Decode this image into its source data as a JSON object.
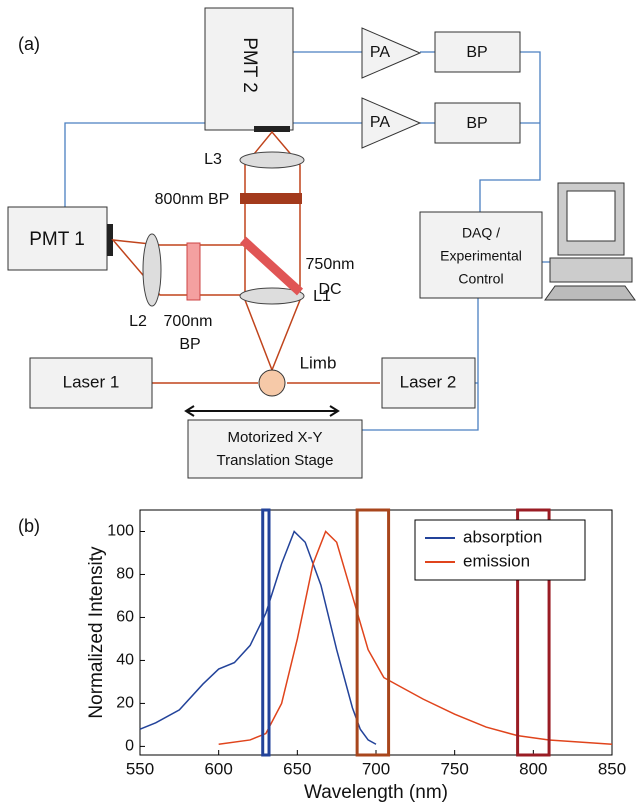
{
  "figure": {
    "panel_a": "(a)",
    "panel_b": "(b)"
  },
  "diagram": {
    "pmt2": "PMT 2",
    "pa1": "PA",
    "pa2": "PA",
    "bp1": "BP",
    "bp2": "BP",
    "daq": [
      "DAQ /",
      "Experimental",
      "Control"
    ],
    "pmt1": "PMT 1",
    "laser1": "Laser 1",
    "laser2": "Laser 2",
    "stage": [
      "Motorized X-Y",
      "Translation Stage"
    ],
    "l3": "L3",
    "bp800": "800nm BP",
    "dc": [
      "750nm",
      "DC"
    ],
    "l1": "L1",
    "l2": "L2",
    "bp700": [
      "700nm",
      "BP"
    ],
    "limb": "Limb"
  },
  "chart_data": {
    "type": "line",
    "xlabel": "Wavelength (nm)",
    "ylabel": "Normalized Intensity",
    "xlim": [
      550,
      850
    ],
    "ylim": [
      -4,
      110
    ],
    "xticks": [
      550,
      600,
      650,
      700,
      750,
      800,
      850
    ],
    "yticks": [
      0,
      20,
      40,
      60,
      80,
      100
    ],
    "legend": "upper right",
    "series": [
      {
        "name": "absorption",
        "color": "#23439a",
        "x": [
          550,
          560,
          575,
          590,
          600,
          610,
          620,
          630,
          640,
          648,
          655,
          665,
          675,
          685,
          690,
          695,
          700
        ],
        "values": [
          8,
          11,
          17,
          29,
          36,
          39,
          47,
          62,
          85,
          100,
          95,
          75,
          45,
          18,
          8,
          3,
          1
        ]
      },
      {
        "name": "emission",
        "color": "#e0441c",
        "x": [
          600,
          620,
          630,
          640,
          650,
          660,
          668,
          675,
          685,
          695,
          705,
          715,
          730,
          750,
          770,
          790,
          810,
          830,
          850
        ],
        "values": [
          1,
          3,
          6,
          20,
          50,
          85,
          100,
          95,
          70,
          45,
          32,
          28,
          22,
          15,
          9,
          5,
          3,
          2,
          1
        ]
      }
    ],
    "bands": [
      {
        "x": [
          628,
          632
        ],
        "color": "#23439a"
      },
      {
        "x": [
          688,
          708
        ],
        "color": "#a8461c"
      },
      {
        "x": [
          790,
          810
        ],
        "color": "#9a1c24"
      }
    ]
  }
}
